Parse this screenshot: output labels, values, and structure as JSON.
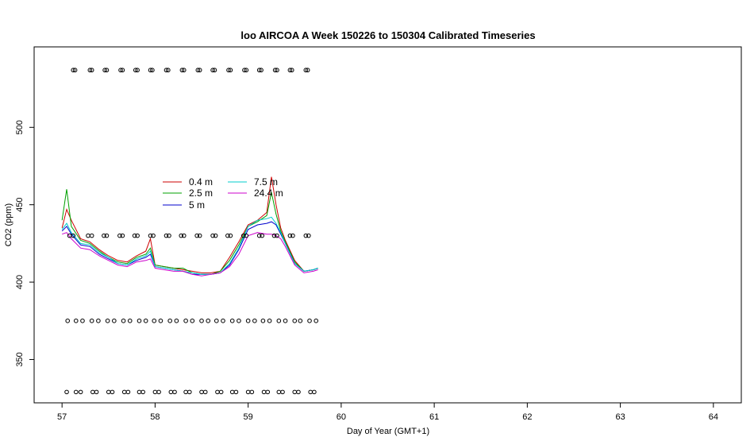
{
  "chart_data": {
    "type": "line",
    "title": "loo AIRCOA A  Week 150226 to 150304  Calibrated Timeseries",
    "xlabel": "Day of Year (GMT+1)",
    "ylabel": "CO2 (ppm)",
    "xlim": [
      56.7,
      64.3
    ],
    "ylim": [
      322,
      552
    ],
    "x_ticks": [
      57,
      58,
      59,
      60,
      61,
      62,
      63,
      64
    ],
    "y_ticks": [
      350,
      400,
      450,
      500
    ],
    "grid": false,
    "legend_placement": "upper-left inside plot",
    "series": [
      {
        "name": "0.4 m",
        "color": "#cc0000",
        "x": [
          57.0,
          57.05,
          57.1,
          57.2,
          57.3,
          57.4,
          57.5,
          57.6,
          57.7,
          57.8,
          57.9,
          57.95,
          58.0,
          58.1,
          58.2,
          58.3,
          58.4,
          58.5,
          58.6,
          58.7,
          58.8,
          58.9,
          59.0,
          59.1,
          59.2,
          59.25,
          59.3,
          59.35,
          59.4,
          59.5,
          59.6,
          59.7,
          59.75
        ],
        "values": [
          435,
          447,
          440,
          428,
          426,
          421,
          417,
          414,
          413,
          417,
          420,
          428,
          411,
          410,
          409,
          408,
          407,
          406,
          406,
          407,
          416,
          426,
          437,
          440,
          445,
          468,
          450,
          435,
          427,
          414,
          407,
          408,
          409
        ]
      },
      {
        "name": "2.5 m",
        "color": "#00a000",
        "x": [
          57.0,
          57.05,
          57.1,
          57.2,
          57.3,
          57.4,
          57.5,
          57.6,
          57.7,
          57.8,
          57.9,
          57.95,
          58.0,
          58.1,
          58.2,
          58.3,
          58.4,
          58.5,
          58.6,
          58.7,
          58.8,
          58.9,
          59.0,
          59.1,
          59.2,
          59.25,
          59.3,
          59.35,
          59.4,
          59.5,
          59.6,
          59.7,
          59.75
        ],
        "values": [
          440,
          460,
          436,
          427,
          425,
          420,
          416,
          413,
          412,
          416,
          418,
          422,
          411,
          410,
          409,
          409,
          406,
          405,
          405,
          407,
          414,
          424,
          436,
          439,
          443,
          458,
          444,
          433,
          426,
          413,
          407,
          408,
          409
        ]
      },
      {
        "name": "5 m",
        "color": "#0000cc",
        "x": [
          57.0,
          57.05,
          57.1,
          57.2,
          57.3,
          57.4,
          57.5,
          57.6,
          57.7,
          57.8,
          57.9,
          57.95,
          58.0,
          58.1,
          58.2,
          58.3,
          58.4,
          58.5,
          58.6,
          58.7,
          58.8,
          58.9,
          59.0,
          59.1,
          59.2,
          59.25,
          59.3,
          59.35,
          59.4,
          59.5,
          59.6,
          59.7,
          59.75
        ],
        "values": [
          433,
          436,
          431,
          424,
          423,
          418,
          415,
          412,
          411,
          414,
          416,
          418,
          410,
          409,
          408,
          407,
          405,
          405,
          405,
          406,
          411,
          421,
          434,
          437,
          438,
          439,
          437,
          431,
          425,
          412,
          407,
          408,
          409
        ]
      },
      {
        "name": "7.5 m",
        "color": "#00cccc",
        "x": [
          57.0,
          57.05,
          57.1,
          57.2,
          57.3,
          57.4,
          57.5,
          57.6,
          57.7,
          57.8,
          57.9,
          57.95,
          58.0,
          58.1,
          58.2,
          58.3,
          58.4,
          58.5,
          58.6,
          58.7,
          58.8,
          58.9,
          59.0,
          59.1,
          59.2,
          59.25,
          59.3,
          59.35,
          59.4,
          59.5,
          59.6,
          59.7,
          59.75
        ],
        "values": [
          434,
          438,
          432,
          425,
          424,
          419,
          416,
          412,
          411,
          415,
          417,
          420,
          410,
          409,
          408,
          407,
          406,
          405,
          405,
          406,
          412,
          422,
          436,
          440,
          441,
          442,
          438,
          432,
          425,
          412,
          407,
          408,
          409
        ]
      },
      {
        "name": "24.4 m",
        "color": "#cc00cc",
        "x": [
          57.0,
          57.05,
          57.1,
          57.2,
          57.3,
          57.4,
          57.5,
          57.6,
          57.7,
          57.8,
          57.9,
          57.95,
          58.0,
          58.1,
          58.2,
          58.3,
          58.4,
          58.5,
          58.6,
          58.7,
          58.8,
          58.9,
          59.0,
          59.1,
          59.2,
          59.25,
          59.3,
          59.35,
          59.4,
          59.5,
          59.6,
          59.7,
          59.75
        ],
        "values": [
          431,
          432,
          428,
          422,
          421,
          417,
          414,
          411,
          410,
          413,
          414,
          415,
          409,
          408,
          407,
          407,
          405,
          404,
          405,
          406,
          410,
          418,
          430,
          432,
          431,
          431,
          430,
          428,
          423,
          411,
          406,
          407,
          408
        ]
      }
    ],
    "marker_rows": [
      {
        "y": 537,
        "x": [
          57.12,
          57.14,
          57.3,
          57.32,
          57.46,
          57.48,
          57.63,
          57.65,
          57.79,
          57.81,
          57.95,
          57.97,
          58.12,
          58.14,
          58.29,
          58.31,
          58.46,
          58.48,
          58.62,
          58.64,
          58.79,
          58.81,
          58.96,
          58.98,
          59.12,
          59.14,
          59.29,
          59.31,
          59.45,
          59.47,
          59.62,
          59.64
        ]
      },
      {
        "y": 430,
        "x": [
          57.08,
          57.12,
          57.28,
          57.32,
          57.45,
          57.48,
          57.62,
          57.65,
          57.78,
          57.81,
          57.95,
          57.98,
          58.12,
          58.15,
          58.28,
          58.31,
          58.45,
          58.48,
          58.62,
          58.65,
          58.78,
          58.81,
          58.95,
          58.98,
          59.12,
          59.15,
          59.28,
          59.31,
          59.45,
          59.48,
          59.62,
          59.65
        ]
      },
      {
        "y": 375,
        "x": [
          57.06,
          57.15,
          57.22,
          57.32,
          57.39,
          57.49,
          57.56,
          57.66,
          57.73,
          57.83,
          57.9,
          57.99,
          58.06,
          58.16,
          58.23,
          58.33,
          58.4,
          58.5,
          58.57,
          58.66,
          58.73,
          58.83,
          58.9,
          59.0,
          59.07,
          59.16,
          59.23,
          59.33,
          59.4,
          59.5,
          59.56,
          59.66,
          59.73
        ]
      },
      {
        "y": 329,
        "x": [
          57.05,
          57.15,
          57.2,
          57.33,
          57.37,
          57.5,
          57.54,
          57.67,
          57.71,
          57.83,
          57.87,
          58.0,
          58.04,
          58.17,
          58.21,
          58.33,
          58.37,
          58.5,
          58.54,
          58.67,
          58.71,
          58.83,
          58.87,
          59.0,
          59.04,
          59.17,
          59.21,
          59.33,
          59.37,
          59.5,
          59.54,
          59.67,
          59.71
        ]
      }
    ]
  }
}
